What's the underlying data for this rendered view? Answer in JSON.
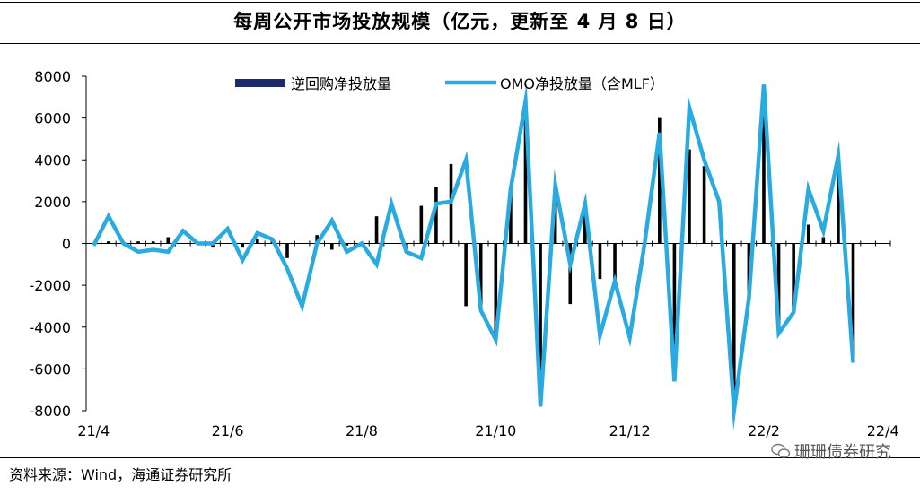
{
  "header": {
    "title": "每周公开市场投放规模（亿元，更新至 4 月 8 日）"
  },
  "footer": {
    "source": "资料来源：Wind，海通证券研究所",
    "watermark": "珊珊债券研究"
  },
  "colors": {
    "bar": "#000000",
    "line": "#29abe2",
    "legend_bar": "#1c2a6b",
    "axis": "#000000"
  },
  "chart_data": {
    "type": "bar",
    "title": "每周公开市场投放规模（亿元，更新至 4 月 8 日）",
    "xlabel": "",
    "ylabel": "",
    "ylim": [
      -8000,
      8000
    ],
    "yticks": [
      8000,
      6000,
      4000,
      2000,
      0,
      -2000,
      -4000,
      -6000,
      -8000
    ],
    "x_tick_labels": [
      {
        "label": "21/4",
        "index": 0
      },
      {
        "label": "21/6",
        "index": 9
      },
      {
        "label": "21/8",
        "index": 18
      },
      {
        "label": "21/10",
        "index": 27
      },
      {
        "label": "21/12",
        "index": 36
      },
      {
        "label": "22/2",
        "index": 45
      },
      {
        "label": "22/4",
        "index": 53
      }
    ],
    "legend": [
      "逆回购净投放量",
      "OMO净投放量（含MLF）"
    ],
    "series": [
      {
        "name": "逆回购净投放量",
        "kind": "bar",
        "values": [
          0,
          100,
          0,
          100,
          100,
          300,
          0,
          0,
          -200,
          0,
          -200,
          200,
          200,
          -700,
          0,
          400,
          -300,
          -100,
          -100,
          1300,
          0,
          -300,
          1800,
          2700,
          3800,
          -3000,
          -3200,
          -4600,
          2600,
          6500,
          -7800,
          2500,
          -2900,
          1600,
          -1700,
          -1900,
          0,
          0,
          6000,
          -6400,
          4500,
          3700,
          0,
          -8000,
          -2600,
          6400,
          -4200,
          -3300,
          900,
          300,
          4100,
          -5700,
          0,
          0
        ]
      },
      {
        "name": "OMO净投放量（含MLF）",
        "kind": "line",
        "values": [
          -100,
          1300,
          0,
          -400,
          -300,
          -400,
          600,
          0,
          0,
          700,
          -800,
          500,
          200,
          -1200,
          -3000,
          0,
          1100,
          -400,
          0,
          -1000,
          1900,
          -400,
          -700,
          1900,
          2000,
          4000,
          -3200,
          -4600,
          2600,
          6800,
          -7800,
          2800,
          -1000,
          1900,
          -4400,
          -1800,
          -4500,
          0,
          5300,
          -6600,
          6500,
          4000,
          2000,
          -8000,
          -2600,
          7600,
          -4300,
          -3300,
          2600,
          600,
          4200,
          -5700
        ]
      }
    ]
  }
}
